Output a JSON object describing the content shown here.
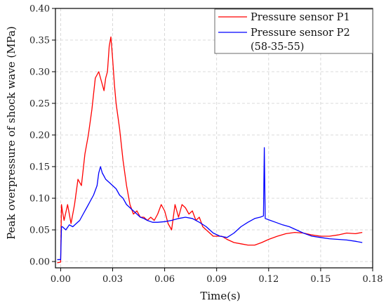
{
  "chart_data": {
    "type": "line",
    "xlabel": "Time(s)",
    "ylabel": "Peak overpressure of shock wave (MPa)",
    "xlim": [
      -0.003,
      0.18
    ],
    "ylim": [
      -0.01,
      0.4
    ],
    "x_ticks": [
      "0.00",
      "0.03",
      "0.06",
      "0.09",
      "0.12",
      "0.15",
      "0.18"
    ],
    "y_ticks": [
      "0.00",
      "0.05",
      "0.10",
      "0.15",
      "0.20",
      "0.25",
      "0.30",
      "0.35",
      "0.40"
    ],
    "grid": true,
    "legend_position": "top-right",
    "legend_note": "(58-35-55)",
    "series": [
      {
        "name": "Pressure sensor P1",
        "color": "#ff0000",
        "x": [
          -0.002,
          0.0,
          0.0005,
          0.001,
          0.002,
          0.004,
          0.006,
          0.008,
          0.01,
          0.012,
          0.014,
          0.016,
          0.018,
          0.02,
          0.022,
          0.024,
          0.025,
          0.026,
          0.027,
          0.028,
          0.029,
          0.03,
          0.031,
          0.032,
          0.034,
          0.036,
          0.038,
          0.04,
          0.042,
          0.044,
          0.046,
          0.048,
          0.05,
          0.052,
          0.054,
          0.056,
          0.058,
          0.06,
          0.062,
          0.064,
          0.066,
          0.068,
          0.07,
          0.072,
          0.074,
          0.076,
          0.078,
          0.08,
          0.082,
          0.084,
          0.086,
          0.088,
          0.09,
          0.093,
          0.096,
          0.1,
          0.104,
          0.108,
          0.112,
          0.116,
          0.12,
          0.125,
          0.13,
          0.135,
          0.14,
          0.145,
          0.15,
          0.155,
          0.16,
          0.165,
          0.17,
          0.174
        ],
        "y": [
          -0.002,
          -0.001,
          0.09,
          0.08,
          0.065,
          0.09,
          0.06,
          0.09,
          0.13,
          0.12,
          0.17,
          0.2,
          0.24,
          0.29,
          0.3,
          0.28,
          0.27,
          0.29,
          0.3,
          0.34,
          0.355,
          0.32,
          0.28,
          0.25,
          0.21,
          0.16,
          0.12,
          0.09,
          0.075,
          0.08,
          0.07,
          0.07,
          0.065,
          0.07,
          0.065,
          0.075,
          0.09,
          0.08,
          0.06,
          0.05,
          0.09,
          0.07,
          0.09,
          0.085,
          0.075,
          0.08,
          0.065,
          0.07,
          0.055,
          0.05,
          0.045,
          0.04,
          0.04,
          0.04,
          0.035,
          0.03,
          0.028,
          0.026,
          0.026,
          0.03,
          0.035,
          0.04,
          0.044,
          0.046,
          0.045,
          0.042,
          0.04,
          0.04,
          0.042,
          0.045,
          0.044,
          0.046
        ]
      },
      {
        "name": "Pressure sensor P2",
        "color": "#0000ff",
        "x": [
          -0.002,
          0.0,
          0.0005,
          0.001,
          0.003,
          0.005,
          0.007,
          0.009,
          0.011,
          0.013,
          0.015,
          0.017,
          0.019,
          0.021,
          0.022,
          0.023,
          0.024,
          0.025,
          0.026,
          0.028,
          0.03,
          0.032,
          0.034,
          0.036,
          0.038,
          0.04,
          0.042,
          0.044,
          0.046,
          0.048,
          0.05,
          0.053,
          0.056,
          0.06,
          0.064,
          0.068,
          0.072,
          0.076,
          0.08,
          0.084,
          0.088,
          0.092,
          0.096,
          0.1,
          0.104,
          0.108,
          0.112,
          0.115,
          0.117,
          0.1175,
          0.118,
          0.12,
          0.124,
          0.128,
          0.132,
          0.136,
          0.14,
          0.145,
          0.15,
          0.155,
          0.16,
          0.165,
          0.17,
          0.174
        ],
        "y": [
          0.003,
          0.003,
          0.055,
          0.055,
          0.05,
          0.058,
          0.055,
          0.06,
          0.065,
          0.075,
          0.085,
          0.095,
          0.105,
          0.12,
          0.14,
          0.15,
          0.14,
          0.135,
          0.13,
          0.125,
          0.12,
          0.115,
          0.105,
          0.1,
          0.09,
          0.085,
          0.08,
          0.075,
          0.07,
          0.068,
          0.065,
          0.062,
          0.062,
          0.063,
          0.065,
          0.068,
          0.07,
          0.068,
          0.062,
          0.055,
          0.045,
          0.04,
          0.038,
          0.045,
          0.055,
          0.062,
          0.068,
          0.07,
          0.072,
          0.18,
          0.068,
          0.066,
          0.062,
          0.058,
          0.055,
          0.05,
          0.045,
          0.04,
          0.038,
          0.036,
          0.035,
          0.034,
          0.032,
          0.03
        ]
      }
    ]
  }
}
